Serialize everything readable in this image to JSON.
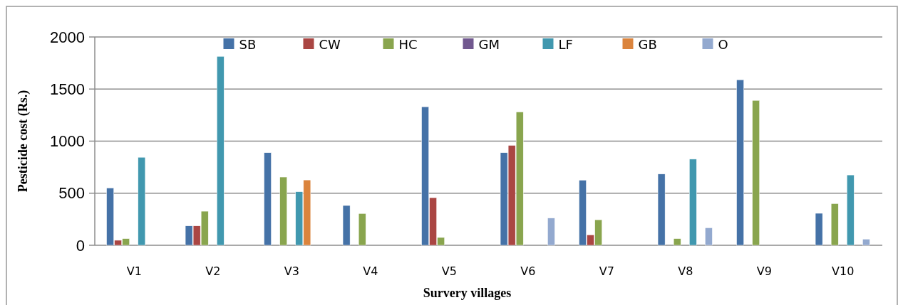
{
  "chart_data": {
    "type": "bar",
    "xlabel": "Survery villages",
    "ylabel": "Pesticide cost (Rs.)",
    "categories": [
      "V1",
      "V2",
      "V3",
      "V4",
      "V5",
      "V6",
      "V7",
      "V8",
      "V9",
      "V10"
    ],
    "series": [
      {
        "name": "SB",
        "color": "#4572a7",
        "values": [
          550,
          186,
          889,
          382,
          1330,
          889,
          625,
          684,
          1589,
          307
        ]
      },
      {
        "name": "CW",
        "color": "#aa4643",
        "values": [
          48,
          186,
          null,
          null,
          457,
          959,
          100,
          null,
          null,
          null
        ]
      },
      {
        "name": "HC",
        "color": "#89a54e",
        "values": [
          64,
          327,
          655,
          305,
          75,
          1280,
          245,
          64,
          1391,
          400
        ]
      },
      {
        "name": "GM",
        "color": "#71588f",
        "values": [
          null,
          null,
          null,
          null,
          null,
          null,
          null,
          null,
          null,
          null
        ]
      },
      {
        "name": "LF",
        "color": "#4198af",
        "values": [
          845,
          1814,
          514,
          null,
          null,
          null,
          null,
          827,
          null,
          675
        ]
      },
      {
        "name": "GB",
        "color": "#db843d",
        "values": [
          null,
          null,
          627,
          null,
          null,
          null,
          null,
          null,
          null,
          null
        ]
      },
      {
        "name": "O",
        "color": "#93a9cf",
        "values": [
          null,
          null,
          null,
          null,
          null,
          261,
          null,
          168,
          null,
          59
        ]
      }
    ],
    "ylim": [
      0,
      2000
    ],
    "yticks": [
      0,
      500,
      1000,
      1500,
      2000
    ],
    "grid": "y",
    "legend": "top"
  }
}
